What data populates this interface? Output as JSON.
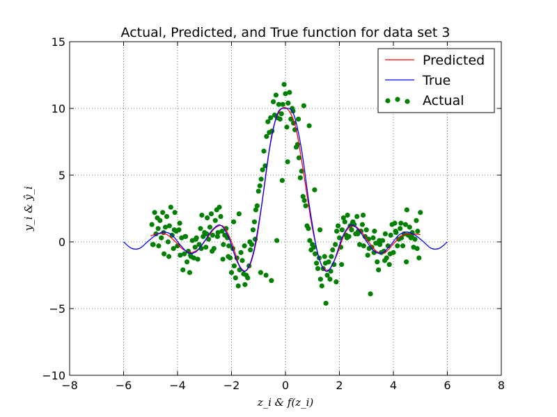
{
  "chart_data": {
    "type": "scatter",
    "title": "Actual, Predicted, and True function for data set 3",
    "xlabel": "z_i & f(z_i)",
    "ylabel": "y_i & ŷ_i",
    "xlim": [
      -8,
      8
    ],
    "ylim": [
      -10,
      15
    ],
    "xticks": [
      -8,
      -6,
      -4,
      -2,
      0,
      2,
      4,
      6,
      8
    ],
    "yticks": [
      -10,
      -5,
      0,
      5,
      10,
      15
    ],
    "xtick_labels": [
      "−8",
      "−6",
      "−4",
      "−2",
      "0",
      "2",
      "4",
      "6",
      "8"
    ],
    "ytick_labels": [
      "−10",
      "−5",
      "0",
      "5",
      "10",
      "15"
    ],
    "grid": true,
    "legend_position": "top-right",
    "legend": [
      "Predicted",
      "True",
      "Actual"
    ],
    "colors": {
      "predicted": "#ff0000",
      "true": "#0000ff",
      "actual": "#008000"
    },
    "series": [
      {
        "name": "True",
        "type": "line",
        "x": [
          -6.0,
          -5.7,
          -5.4,
          -5.1,
          -4.8,
          -4.5,
          -4.2,
          -3.9,
          -3.6,
          -3.3,
          -3.0,
          -2.7,
          -2.4,
          -2.1,
          -1.8,
          -1.5,
          -1.2,
          -0.9,
          -0.6,
          -0.3,
          0.0,
          0.3,
          0.6,
          0.9,
          1.2,
          1.5,
          1.8,
          2.1,
          2.4,
          2.7,
          3.0,
          3.3,
          3.6,
          3.9,
          4.2,
          4.5,
          4.8,
          5.1,
          5.4,
          5.7,
          6.0
        ],
        "y": [
          0.0,
          -0.49,
          -0.48,
          0.03,
          0.51,
          0.74,
          0.5,
          -0.23,
          -0.82,
          -0.72,
          0.05,
          0.92,
          1.24,
          0.31,
          -1.44,
          -2.2,
          -0.9,
          2.52,
          6.87,
          9.59,
          10.0,
          9.59,
          6.87,
          2.52,
          -0.9,
          -2.2,
          -1.44,
          0.31,
          1.24,
          0.92,
          0.05,
          -0.72,
          -0.82,
          -0.23,
          0.5,
          0.74,
          0.51,
          0.03,
          -0.48,
          -0.49,
          0.0
        ]
      },
      {
        "name": "Predicted",
        "type": "line",
        "x": [
          -5.0,
          -4.7,
          -4.4,
          -4.1,
          -3.8,
          -3.5,
          -3.2,
          -2.9,
          -2.6,
          -2.3,
          -2.0,
          -1.7,
          -1.4,
          -1.1,
          -0.8,
          -0.5,
          -0.2,
          0.1,
          0.4,
          0.7,
          1.0,
          1.3,
          1.6,
          1.9,
          2.2,
          2.5,
          2.8,
          3.1,
          3.4,
          3.7,
          4.0,
          4.3,
          4.6,
          5.0
        ],
        "y": [
          0.45,
          0.62,
          0.55,
          0.05,
          -0.55,
          -0.8,
          -0.5,
          0.3,
          1.05,
          1.15,
          0.0,
          -1.8,
          -2.05,
          -0.15,
          3.9,
          8.1,
          9.85,
          9.9,
          8.4,
          4.8,
          1.0,
          -1.55,
          -2.1,
          -1.0,
          0.65,
          1.2,
          0.8,
          -0.05,
          -0.75,
          -0.78,
          -0.15,
          0.45,
          0.6,
          0.55
        ]
      },
      {
        "name": "Actual",
        "type": "scatter",
        "x": [
          -4.95,
          -4.9,
          -4.85,
          -4.8,
          -4.75,
          -4.7,
          -4.65,
          -4.6,
          -4.55,
          -4.5,
          -4.45,
          -4.4,
          -4.35,
          -4.3,
          -4.25,
          -4.2,
          -4.15,
          -4.1,
          -4.05,
          -4.0,
          -3.95,
          -3.9,
          -3.85,
          -3.8,
          -3.75,
          -3.7,
          -3.65,
          -3.6,
          -3.55,
          -3.5,
          -3.45,
          -3.4,
          -3.35,
          -3.3,
          -3.25,
          -3.2,
          -3.15,
          -3.1,
          -3.05,
          -3.0,
          -2.95,
          -2.9,
          -2.85,
          -2.8,
          -2.75,
          -2.7,
          -2.65,
          -2.6,
          -2.55,
          -2.5,
          -2.45,
          -2.4,
          -2.35,
          -2.3,
          -2.25,
          -2.2,
          -2.15,
          -2.1,
          -2.05,
          -2.0,
          -1.95,
          -1.9,
          -1.85,
          -1.8,
          -1.75,
          -1.7,
          -1.65,
          -1.6,
          -1.55,
          -1.5,
          -1.45,
          -1.4,
          -1.35,
          -1.3,
          -1.25,
          -1.2,
          -1.15,
          -1.1,
          -1.05,
          -1.0,
          -0.95,
          -0.9,
          -0.85,
          -0.8,
          -0.75,
          -0.7,
          -0.65,
          -0.6,
          -0.55,
          -0.5,
          -0.45,
          -0.4,
          -0.35,
          -0.3,
          -0.25,
          -0.2,
          -0.15,
          -0.1,
          -0.05,
          0.0,
          0.05,
          0.1,
          0.15,
          0.2,
          0.25,
          0.3,
          0.35,
          0.4,
          0.45,
          0.5,
          0.55,
          0.6,
          0.65,
          0.7,
          0.75,
          0.8,
          0.85,
          0.9,
          0.95,
          1.0,
          1.05,
          1.1,
          1.15,
          1.2,
          1.25,
          1.3,
          1.35,
          1.4,
          1.45,
          1.5,
          1.55,
          1.6,
          1.65,
          1.7,
          1.75,
          1.8,
          1.85,
          1.9,
          1.95,
          2.0,
          2.05,
          2.1,
          2.15,
          2.2,
          2.25,
          2.3,
          2.35,
          2.4,
          2.45,
          2.5,
          2.55,
          2.6,
          2.65,
          2.7,
          2.75,
          2.8,
          2.85,
          2.9,
          2.95,
          3.0,
          3.05,
          3.1,
          3.15,
          3.2,
          3.25,
          3.3,
          3.35,
          3.4,
          3.45,
          3.5,
          3.55,
          3.6,
          3.65,
          3.7,
          3.75,
          3.8,
          3.85,
          3.9,
          3.95,
          4.0,
          4.05,
          4.1,
          4.15,
          4.2,
          4.25,
          4.3,
          4.35,
          4.4,
          4.45,
          4.5,
          4.55,
          4.6,
          4.65,
          4.7,
          4.75,
          4.8,
          4.85,
          4.9,
          4.95,
          5.0,
          -4.92,
          -4.72,
          -4.52,
          -4.32,
          -4.12,
          -3.92,
          -3.72,
          -3.52,
          -3.32,
          -3.12,
          -2.92,
          -2.72,
          -2.52,
          -2.32,
          -2.12,
          -1.92,
          -1.72,
          -1.52,
          -1.32,
          -1.12,
          -0.92,
          -0.72,
          -0.52,
          -0.32,
          -0.12,
          0.08,
          0.28,
          0.48,
          0.68,
          0.88,
          1.08,
          1.28,
          1.48,
          1.68,
          1.88,
          2.08,
          2.28,
          2.48,
          2.68,
          2.88,
          3.08,
          3.28,
          3.48,
          3.68,
          3.88,
          4.08,
          4.28,
          4.48,
          4.68,
          4.88
        ],
        "y": [
          1.3,
          -0.2,
          2.2,
          0.6,
          1.8,
          -0.3,
          1.6,
          0.3,
          2.2,
          -0.9,
          1.1,
          1.9,
          0.0,
          1.2,
          2.6,
          0.5,
          -0.5,
          2.2,
          0.8,
          -0.3,
          0.9,
          -1.0,
          0.3,
          -2.1,
          -0.9,
          0.4,
          -1.5,
          -0.7,
          -2.3,
          -1.1,
          0.1,
          -1.2,
          -0.4,
          0.3,
          -1.3,
          -0.2,
          1.0,
          2.0,
          0.4,
          0.7,
          -0.4,
          1.8,
          0.2,
          1.1,
          2.1,
          0.5,
          -0.5,
          1.6,
          2.4,
          0.7,
          2.6,
          1.9,
          0.8,
          -0.2,
          0.5,
          1.0,
          0.3,
          -0.3,
          -1.2,
          -2.3,
          -0.5,
          -1.8,
          -2.7,
          -1.2,
          -3.3,
          -2.1,
          -0.8,
          -1.4,
          -2.4,
          -3.2,
          -2.5,
          -2.7,
          -1.8,
          -0.6,
          -0.2,
          0.9,
          1.5,
          2.4,
          2.7,
          3.8,
          4.2,
          4.7,
          5.4,
          6.8,
          5.7,
          7.9,
          9.0,
          8.2,
          9.3,
          8.3,
          10.5,
          9.5,
          11.0,
          9.3,
          10.3,
          9.2,
          9.6,
          10.3,
          11.8,
          11.1,
          8.6,
          10.4,
          11.2,
          9.2,
          10.0,
          8.9,
          8.4,
          7.1,
          7.3,
          6.3,
          4.8,
          5.3,
          3.4,
          3.1,
          2.7,
          1.2,
          1.0,
          0.1,
          -0.6,
          -0.2,
          -0.4,
          -0.9,
          -1.6,
          -2.0,
          -1.2,
          -2.8,
          -3.3,
          -2.0,
          -1.1,
          -4.6,
          -2.5,
          -1.5,
          -2.8,
          -1.1,
          -0.6,
          -1.7,
          -0.2,
          0.8,
          1.2,
          0.3,
          -0.4,
          0.9,
          1.8,
          1.5,
          0.5,
          2.0,
          0.4,
          1.2,
          0.9,
          1.5,
          1.3,
          0.6,
          1.9,
          0.8,
          -0.2,
          0.8,
          1.3,
          -0.3,
          0.4,
          0.9,
          -1.0,
          -0.5,
          -3.9,
          -0.4,
          0.3,
          0.8,
          -0.1,
          -1.5,
          -2.1,
          -0.2,
          -0.8,
          0.1,
          -0.7,
          0.6,
          -1.2,
          -0.3,
          -1.7,
          0.5,
          1.3,
          -0.8,
          1.4,
          0.7,
          -0.3,
          0.2,
          1.0,
          0.3,
          -0.3,
          0.6,
          1.3,
          2.4,
          0.5,
          1.1,
          0.3,
          0.7,
          -0.4,
          0.2,
          1.6,
          0.8,
          -1.2,
          2.2,
          -0.2,
          1.0,
          0.7,
          -1.1,
          0.9,
          1.4,
          0.4,
          -1.0,
          0.2,
          -0.5,
          0.6,
          -0.7,
          0.4,
          -1.3,
          -1.1,
          1.5,
          2.1,
          -0.3,
          0.0,
          0.2,
          -2.3,
          -2.5,
          -2.9,
          0.1,
          4.6,
          6.0,
          9.8,
          9.2,
          10.2,
          8.7,
          3.9,
          0.9,
          -1.6,
          -2.2,
          -3.0,
          -1.7,
          0.3,
          1.4,
          0.6,
          2.0,
          0.2,
          -0.8,
          0.1,
          -1.4,
          -0.9,
          0.8,
          1.4,
          -1.5,
          0.4,
          -0.5
        ]
      }
    ]
  }
}
